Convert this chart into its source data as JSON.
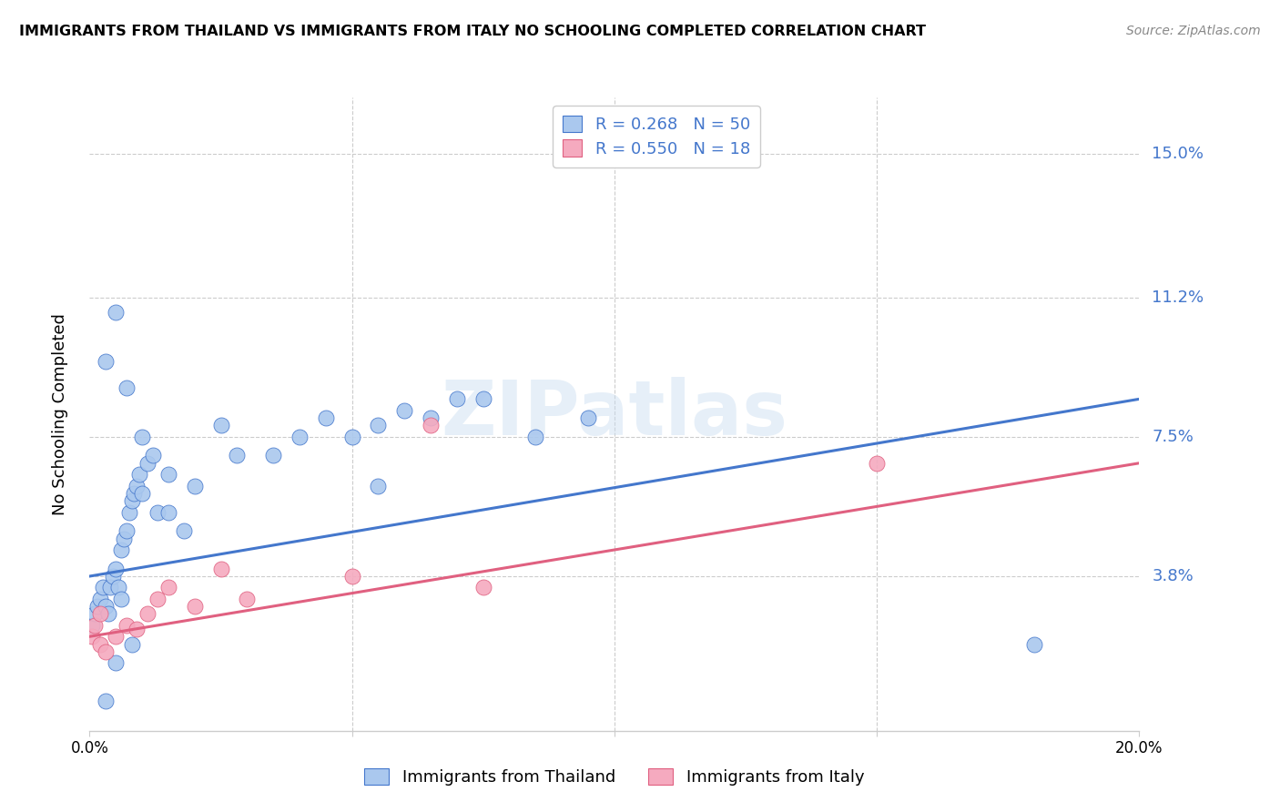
{
  "title": "IMMIGRANTS FROM THAILAND VS IMMIGRANTS FROM ITALY NO SCHOOLING COMPLETED CORRELATION CHART",
  "source": "Source: ZipAtlas.com",
  "ylabel": "No Schooling Completed",
  "ytick_labels": [
    "3.8%",
    "7.5%",
    "11.2%",
    "15.0%"
  ],
  "ytick_values": [
    3.8,
    7.5,
    11.2,
    15.0
  ],
  "xlim": [
    0.0,
    20.0
  ],
  "ylim": [
    -0.3,
    16.5
  ],
  "legend1_r": "0.268",
  "legend1_n": "50",
  "legend2_r": "0.550",
  "legend2_n": "18",
  "legend_label1": "Immigrants from Thailand",
  "legend_label2": "Immigrants from Italy",
  "color_blue": "#aac8ee",
  "color_pink": "#f5aabf",
  "color_line_blue": "#4477cc",
  "color_line_pink": "#e06080",
  "thailand_x": [
    0.05,
    0.1,
    0.15,
    0.2,
    0.25,
    0.3,
    0.35,
    0.4,
    0.45,
    0.5,
    0.55,
    0.6,
    0.65,
    0.7,
    0.75,
    0.8,
    0.85,
    0.9,
    0.95,
    1.0,
    1.1,
    1.2,
    1.3,
    1.5,
    1.8,
    2.0,
    2.5,
    3.5,
    4.5,
    5.0,
    5.5,
    6.0,
    7.5,
    8.5,
    9.5,
    18.0,
    0.3,
    0.5,
    0.7,
    1.0,
    1.5,
    2.8,
    4.0,
    5.5,
    6.5,
    7.0,
    0.3,
    0.5,
    0.6,
    0.8
  ],
  "thailand_y": [
    2.5,
    2.8,
    3.0,
    3.2,
    3.5,
    3.0,
    2.8,
    3.5,
    3.8,
    4.0,
    3.5,
    4.5,
    4.8,
    5.0,
    5.5,
    5.8,
    6.0,
    6.2,
    6.5,
    6.0,
    6.8,
    7.0,
    5.5,
    6.5,
    5.0,
    6.2,
    7.8,
    7.0,
    8.0,
    7.5,
    7.8,
    8.2,
    8.5,
    7.5,
    8.0,
    2.0,
    9.5,
    10.8,
    8.8,
    7.5,
    5.5,
    7.0,
    7.5,
    6.2,
    8.0,
    8.5,
    0.5,
    1.5,
    3.2,
    2.0
  ],
  "italy_x": [
    0.05,
    0.1,
    0.2,
    0.3,
    0.5,
    0.7,
    0.9,
    1.1,
    1.3,
    1.5,
    2.0,
    2.5,
    3.0,
    5.0,
    6.5,
    7.5,
    15.0,
    0.2
  ],
  "italy_y": [
    2.2,
    2.5,
    2.0,
    1.8,
    2.2,
    2.5,
    2.4,
    2.8,
    3.2,
    3.5,
    3.0,
    4.0,
    3.2,
    3.8,
    7.8,
    3.5,
    6.8,
    2.8
  ],
  "thailand_line_x": [
    0.0,
    20.0
  ],
  "thailand_line_y": [
    3.8,
    8.5
  ],
  "italy_line_x": [
    0.0,
    20.0
  ],
  "italy_line_y": [
    2.2,
    6.8
  ],
  "watermark_text": "ZIPatlas",
  "background_color": "#ffffff",
  "grid_color": "#cccccc"
}
